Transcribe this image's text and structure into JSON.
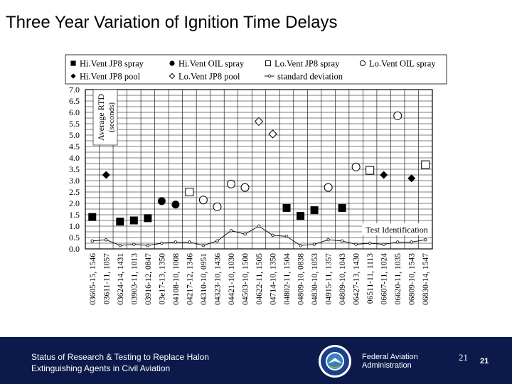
{
  "slide": {
    "title": "Three Year Variation of Ignition Time Delays"
  },
  "footer": {
    "line1": "Status of Research & Testing to Replace Halon",
    "line2": "Extinguishing Agents in Civil Aviation",
    "agency_line1": "Federal Aviation",
    "agency_line2": "Administration",
    "page_serif": "21",
    "page": "21",
    "bg_color": "#0b1a4a"
  },
  "chart_data": {
    "type": "scatter",
    "ylabel": "Average RTD (seconds)",
    "xlabel": "Test Identification",
    "ylim": [
      0,
      7
    ],
    "yticks": [
      "0.0",
      "0.5",
      "1.0",
      "1.5",
      "2.0",
      "2.5",
      "3.0",
      "3.5",
      "4.0",
      "4.5",
      "5.0",
      "5.5",
      "6.0",
      "6.5",
      "7.0"
    ],
    "categories": [
      "03605-15, 1546",
      "03611-11, 1057",
      "03624-14, 1431",
      "03903-11, 1013",
      "03916-12, 0847",
      "03e17-13, 1350",
      "04108-10, 1008",
      "04217-12, 1346",
      "04310-10, 0951",
      "04323-10, 1436",
      "04421-10, 1030",
      "04503-10, 1500",
      "04622-11, 1505",
      "04714-10, 1350",
      "04802-11, 1504",
      "04809-10, 0838",
      "04830-10, 1053",
      "04915-11, 1357",
      "04809-10, 1043",
      "06427-13, 1430",
      "06511-11, 1113",
      "06607-11, 1024",
      "06620-11, 1035",
      "06809-10, 1543",
      "06830-14, 1547"
    ],
    "legend": [
      {
        "key": "hivent_jp8_spray",
        "label": "Hi.Vent JP8 spray",
        "marker": "filled-square"
      },
      {
        "key": "hivent_oil_spray",
        "label": "Hi.Vent OIL spray",
        "marker": "filled-circle"
      },
      {
        "key": "lovent_jp8_spray",
        "label": "Lo.Vent JP8 spray",
        "marker": "open-square"
      },
      {
        "key": "lovent_oil_spray",
        "label": "Lo.Vent OIL spray",
        "marker": "open-circle"
      },
      {
        "key": "hivent_jp8_pool",
        "label": "Hi.Vent JP8 pool",
        "marker": "filled-diamond"
      },
      {
        "key": "lovent_jp8_pool",
        "label": "Lo.Vent JP8 pool",
        "marker": "open-diamond"
      },
      {
        "key": "std_dev",
        "label": "standard deviation",
        "marker": "line-circle"
      }
    ],
    "series": [
      {
        "key": "hivent_jp8_spray",
        "points": [
          [
            0,
            1.4
          ],
          [
            2,
            1.2
          ],
          [
            3,
            1.25
          ],
          [
            4,
            1.35
          ],
          [
            14,
            1.8
          ],
          [
            15,
            1.45
          ],
          [
            16,
            1.7
          ],
          [
            18,
            1.8
          ]
        ]
      },
      {
        "key": "hivent_oil_spray",
        "points": [
          [
            5,
            2.1
          ],
          [
            6,
            1.95
          ]
        ]
      },
      {
        "key": "lovent_jp8_spray",
        "points": [
          [
            7,
            2.5
          ],
          [
            20,
            3.45
          ],
          [
            24,
            3.7
          ]
        ]
      },
      {
        "key": "lovent_oil_spray",
        "points": [
          [
            8,
            2.15
          ],
          [
            9,
            1.85
          ],
          [
            10,
            2.85
          ],
          [
            11,
            2.7
          ],
          [
            17,
            2.7
          ],
          [
            19,
            3.6
          ],
          [
            22,
            5.85
          ]
        ]
      },
      {
        "key": "hivent_jp8_pool",
        "points": [
          [
            1,
            3.25
          ],
          [
            21,
            3.25
          ],
          [
            23,
            3.1
          ]
        ]
      },
      {
        "key": "lovent_jp8_pool",
        "points": [
          [
            12,
            5.6
          ],
          [
            13,
            5.05
          ]
        ]
      },
      {
        "key": "std_dev",
        "points": [
          [
            0,
            0.35
          ],
          [
            1,
            0.4
          ],
          [
            2,
            0.15
          ],
          [
            3,
            0.2
          ],
          [
            4,
            0.15
          ],
          [
            5,
            0.25
          ],
          [
            6,
            0.3
          ],
          [
            7,
            0.3
          ],
          [
            8,
            0.15
          ],
          [
            9,
            0.35
          ],
          [
            10,
            0.8
          ],
          [
            11,
            0.65
          ],
          [
            12,
            1.0
          ],
          [
            13,
            0.6
          ],
          [
            14,
            0.55
          ],
          [
            15,
            0.15
          ],
          [
            16,
            0.2
          ],
          [
            17,
            0.4
          ],
          [
            18,
            0.35
          ],
          [
            19,
            0.2
          ],
          [
            20,
            0.25
          ],
          [
            21,
            0.2
          ],
          [
            22,
            0.3
          ],
          [
            23,
            0.3
          ],
          [
            24,
            0.4
          ]
        ]
      }
    ]
  }
}
